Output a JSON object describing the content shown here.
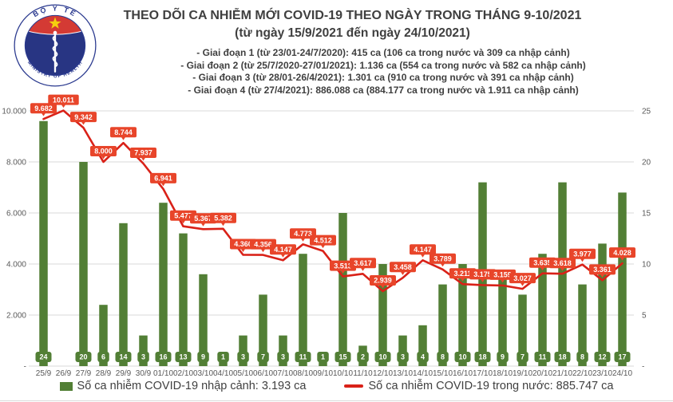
{
  "logo": {
    "top_text": "BỘ Y TẾ",
    "bottom_text": "MINISTRY OF HEALTH"
  },
  "header": {
    "title": "THEO DÕI CA NHIỄM MỚI COVID-19 THEO NGÀY TRONG THÁNG 9-10/2021",
    "subtitle": "(từ ngày 15/9/2021 đến ngày 24/10/2021)",
    "phases": [
      "- Giai đoạn 1 (từ 23/01-24/7/2020): 415 ca (106 ca trong nước và 309 ca nhập cảnh)",
      "- Giai đoạn 2 (từ 25/7/2020-27/01/2021): 1.136 ca (554 ca trong nước và 582 ca nhập cảnh)",
      "- Giai đoạn 3 (từ 28/01-26/4/2021): 1.301 ca (910 ca trong nước và 391 ca nhập cảnh)",
      "- Giai đoạn 4 (từ 27/4/2021): 886.088 ca (884.177 ca trong nước và 1.911 ca nhập cảnh)"
    ]
  },
  "chart_data": {
    "type": "combo_bar_line",
    "categories": [
      "25/9",
      "26/9",
      "27/9",
      "28/9",
      "29/9",
      "30/9",
      "01/10",
      "02/10",
      "03/10",
      "04/10",
      "05/10",
      "06/10",
      "07/10",
      "08/10",
      "09/10",
      "10/10",
      "11/10",
      "12/10",
      "13/10",
      "14/10",
      "15/10",
      "16/10",
      "17/10",
      "18/10",
      "19/10",
      "20/10",
      "21/10",
      "22/10",
      "23/10",
      "24/10"
    ],
    "series": [
      {
        "name": "Số ca nhiễm COVID-19 nhập cảnh",
        "type": "bar",
        "axis": "right",
        "color": "#527f35",
        "values": [
          24,
          null,
          20,
          6,
          14,
          3,
          16,
          13,
          9,
          1,
          3,
          7,
          3,
          11,
          1,
          15,
          2,
          10,
          3,
          4,
          8,
          10,
          18,
          9,
          7,
          11,
          18,
          8,
          12,
          17
        ],
        "labels": [
          "24",
          null,
          "20",
          "6",
          "14",
          "3",
          "16",
          "13",
          "9",
          "1",
          "3",
          "7",
          "3",
          "11",
          "1",
          "15",
          "2",
          "10",
          "3",
          "4",
          "8",
          "10",
          "18",
          "9",
          "7",
          "11",
          "18",
          "8",
          "12",
          "17"
        ]
      },
      {
        "name": "Số ca nhiễm COVID-19 trong nước",
        "type": "line",
        "axis": "left",
        "color": "#d92118",
        "label_box_color": "#e8452a",
        "values": [
          9682,
          10011,
          9342,
          8000,
          8744,
          7937,
          6941,
          5477,
          5367,
          5382,
          4360,
          4356,
          4147,
          4773,
          4512,
          3513,
          3617,
          2939,
          3458,
          4147,
          3789,
          3211,
          3175,
          3159,
          3027,
          3635,
          3618,
          3977,
          3361,
          4028
        ],
        "labels": [
          "9.682",
          "10.011",
          "9.342",
          "8.000",
          "8.744",
          "7.937",
          "6.941",
          "5.477",
          "5.367",
          "5.382",
          "4.360",
          "4.356",
          "4.147",
          "4.773",
          "4.512",
          "3.513",
          "3.617",
          "2.939",
          "3.458",
          "4.147",
          "3.789",
          "3.211",
          "3.175",
          "3.159",
          "3.027",
          "3.635",
          "3.618",
          "3.977",
          "3.361",
          "4.028"
        ]
      }
    ],
    "left_axis": {
      "ticks": [
        "10.000",
        "8.000",
        "6.000",
        "4.000",
        "2.000",
        "-"
      ],
      "range": [
        0,
        10000
      ],
      "grid": true
    },
    "right_axis": {
      "ticks": [
        "25",
        "20",
        "15",
        "10",
        "5",
        "-"
      ],
      "range": [
        0,
        25
      ]
    },
    "grid_color": "#d9d9d9",
    "axis_text_color": "#595959",
    "legend_position": "bottom"
  },
  "legend": {
    "items": [
      {
        "swatch": "bar",
        "color": "#527f35",
        "label": "Số ca nhiễm COVID-19 nhập cảnh: 3.193 ca"
      },
      {
        "swatch": "line",
        "color": "#d92118",
        "label": "Số ca nhiễm COVID-19 trong nước: 885.747 ca"
      }
    ]
  }
}
